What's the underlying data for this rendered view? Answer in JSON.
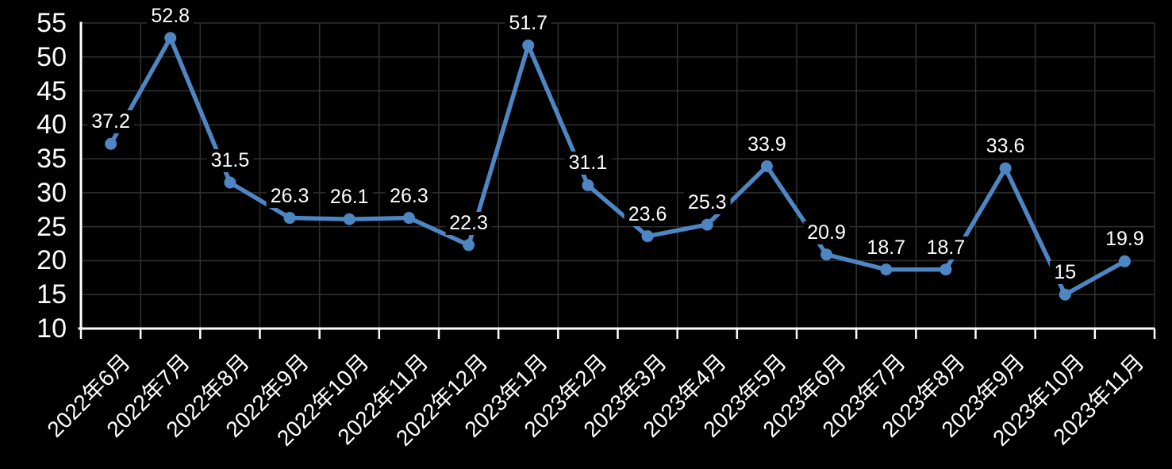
{
  "chart_data": {
    "type": "line",
    "title": "",
    "xlabel": "",
    "ylabel": "",
    "legend": "none",
    "grid": true,
    "categories": [
      "2022年6月",
      "2022年7月",
      "2022年8月",
      "2022年9月",
      "2022年10月",
      "2022年11月",
      "2022年12月",
      "2023年1月",
      "2023年2月",
      "2023年3月",
      "2023年4月",
      "2023年5月",
      "2023年6月",
      "2023年7月",
      "2023年8月",
      "2023年9月",
      "2023年10月",
      "2023年11月"
    ],
    "values": [
      37.2,
      52.8,
      31.5,
      26.3,
      26.1,
      26.3,
      22.3,
      51.7,
      31.1,
      23.6,
      25.3,
      33.9,
      20.9,
      18.7,
      18.7,
      33.6,
      15,
      19.9
    ],
    "data_labels": [
      "37.2",
      "52.8",
      "31.5",
      "26.3",
      "26.1",
      "26.3",
      "22.3",
      "51.7",
      "31.1",
      "23.6",
      "25.3",
      "33.9",
      "20.9",
      "18.7",
      "18.7",
      "33.6",
      "15",
      "19.9"
    ],
    "ylim": [
      10,
      55
    ],
    "yticks": [
      10,
      15,
      20,
      25,
      30,
      35,
      40,
      45,
      50,
      55
    ],
    "colors": {
      "background": "#000000",
      "line": "#4E86C4",
      "marker": "#4E86C4",
      "gridline": "#303030",
      "axis": "#FFFFFF",
      "label_text": "#FFFFFF"
    }
  }
}
